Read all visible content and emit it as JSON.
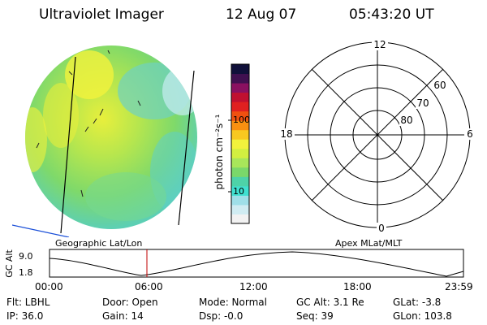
{
  "header": {
    "instrument": "Ultraviolet Imager",
    "date": "12 Aug 07",
    "time": "05:43:20 UT"
  },
  "colorbar": {
    "unit_label": "photon cm⁻²s⁻¹",
    "tick_100": "100",
    "tick_10": "10",
    "colors": [
      "#f2f2f2",
      "#d0ecf2",
      "#9fdfe8",
      "#40e0d0",
      "#4ed2a8",
      "#7ad86a",
      "#a8e65a",
      "#d2ef40",
      "#f2f23c",
      "#f8c820",
      "#f89010",
      "#f05010",
      "#e02020",
      "#c01030",
      "#8a1060",
      "#401050",
      "#10103a"
    ]
  },
  "polar_plot": {
    "mlt_labels": {
      "top": "12",
      "left": "18",
      "right": "6",
      "bottom": "0"
    },
    "lat_labels": {
      "lat60": "60",
      "lat70": "70",
      "lat80": "80"
    }
  },
  "timeline": {
    "left_title": "Geographic Lat/Lon",
    "right_title": "Apex MLat/MLT",
    "axis_label": "GC Alt",
    "y_top": "9.0",
    "y_bottom": "1.8",
    "time_ticks": [
      "00:00",
      "06:00",
      "12:00",
      "18:00",
      "23:59"
    ],
    "current_marker_time": "05:43"
  },
  "status": {
    "flt": "Flt: LBHL",
    "ip": "IP: 36.0",
    "door": "Door: Open",
    "gain": "Gain: 14",
    "mode": "Mode: Normal",
    "dsp": "Dsp:   -0.0",
    "gcalt": "GC Alt: 3.1 Re",
    "seq": "Seq: 39",
    "glat": "GLat:  -3.8",
    "glon": "GLon: 103.8"
  }
}
